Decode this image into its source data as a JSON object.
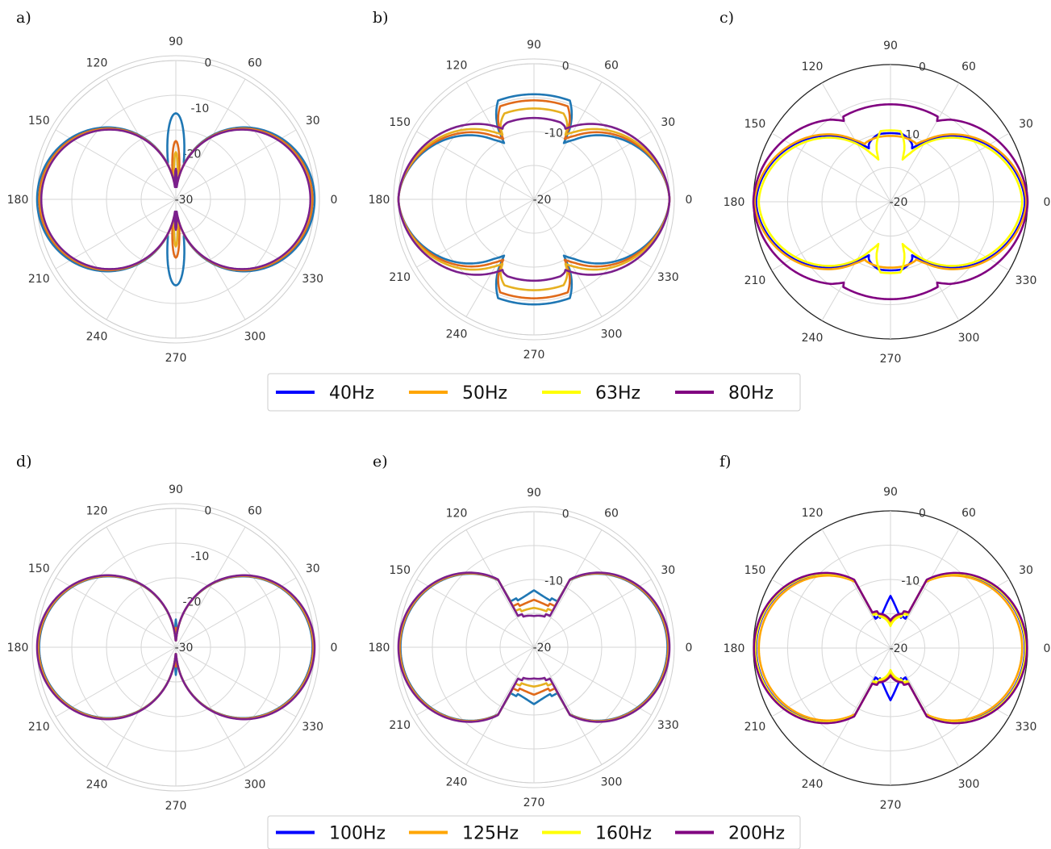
{
  "chart_data": [
    {
      "panel": "a)",
      "type": "polar",
      "style": "light",
      "angle_ticks": [
        "0",
        "30",
        "60",
        "90",
        "120",
        "150",
        "180",
        "210",
        "240",
        "270",
        "300",
        "330"
      ],
      "r_ticks": [
        "0",
        "-10",
        "-20",
        "-30"
      ],
      "r_range": [
        -30,
        0
      ],
      "grid": true,
      "series": [
        {
          "color": "#1f77b4",
          "ref": "40Hz",
          "pattern": "dipole",
          "values": {
            "lobe": 1.0,
            "minor": 0.62,
            "minor_width": 0.18,
            "base": 0.0
          }
        },
        {
          "color": "#e06a1a",
          "ref": "50Hz",
          "pattern": "dipole",
          "values": {
            "lobe": 0.985,
            "minor": 0.42,
            "minor_width": 0.11,
            "base": 0.0
          }
        },
        {
          "color": "#e6b020",
          "ref": "63Hz",
          "pattern": "dipole",
          "values": {
            "lobe": 0.975,
            "minor": 0.34,
            "minor_width": 0.07,
            "base": 0.0
          }
        },
        {
          "color": "#7b1f8c",
          "ref": "80Hz",
          "pattern": "dipole",
          "values": {
            "lobe": 0.97,
            "minor": 0.22,
            "minor_width": 0.05,
            "base": 0.0
          }
        }
      ]
    },
    {
      "panel": "b)",
      "type": "polar",
      "style": "light",
      "angle_ticks": [
        "0",
        "30",
        "60",
        "90",
        "120",
        "150",
        "180",
        "210",
        "240",
        "270",
        "300",
        "330"
      ],
      "r_ticks": [
        "0",
        "-10",
        "-20"
      ],
      "r_range": [
        -20,
        0
      ],
      "grid": true,
      "series": [
        {
          "color": "#1f77b4",
          "ref": "40Hz",
          "pattern": "cross",
          "values": {
            "side": 1.0,
            "top": 0.775,
            "notch": 0.47,
            "notch_at": 62,
            "top_width": 24
          }
        },
        {
          "color": "#e06a1a",
          "ref": "50Hz",
          "pattern": "cross",
          "values": {
            "side": 1.0,
            "top": 0.73,
            "notch": 0.5,
            "notch_at": 63,
            "top_width": 24
          }
        },
        {
          "color": "#e6b020",
          "ref": "63Hz",
          "pattern": "cross",
          "values": {
            "side": 1.0,
            "top": 0.67,
            "notch": 0.53,
            "notch_at": 64,
            "top_width": 23
          }
        },
        {
          "color": "#7b1f8c",
          "ref": "80Hz",
          "pattern": "cross",
          "values": {
            "side": 1.0,
            "top": 0.6,
            "notch": 0.57,
            "notch_at": 66,
            "top_width": 23
          }
        }
      ]
    },
    {
      "panel": "c)",
      "type": "polar",
      "style": "dark",
      "angle_ticks": [
        "0",
        "30",
        "60",
        "90",
        "120",
        "150",
        "180",
        "210",
        "240",
        "270",
        "300",
        "330"
      ],
      "r_ticks": [
        "0",
        "-10",
        "-20"
      ],
      "r_range": [
        -20,
        0
      ],
      "grid": true,
      "series": [
        {
          "color": "#0000ff",
          "ref": "40Hz",
          "pattern": "cross",
          "values": {
            "side": 0.98,
            "top": 0.5,
            "notch": 0.42,
            "notch_at": 68,
            "top_width": 14
          }
        },
        {
          "color": "#ffa500",
          "ref": "50Hz",
          "pattern": "cross",
          "values": {
            "side": 0.99,
            "top": 0.48,
            "notch": 0.46,
            "notch_at": 66,
            "top_width": 15
          }
        },
        {
          "color": "#ffff00",
          "ref": "63Hz",
          "pattern": "cross",
          "values": {
            "side": 0.96,
            "top": 0.52,
            "notch": 0.32,
            "notch_at": 74,
            "top_width": 12
          }
        },
        {
          "color": "#800080",
          "ref": "80Hz",
          "pattern": "cross",
          "values": {
            "side": 1.0,
            "top": 0.71,
            "notch": 0.68,
            "notch_at": 60,
            "top_width": 40
          }
        }
      ]
    },
    {
      "panel": "d)",
      "type": "polar",
      "style": "light",
      "angle_ticks": [
        "0",
        "30",
        "60",
        "90",
        "120",
        "150",
        "180",
        "210",
        "240",
        "270",
        "300",
        "330"
      ],
      "r_ticks": [
        "0",
        "-10",
        "-20",
        "-30"
      ],
      "r_range": [
        -30,
        0
      ],
      "grid": true,
      "series": [
        {
          "color": "#1f77b4",
          "ref": "100Hz",
          "pattern": "dipole",
          "values": {
            "lobe": 0.985,
            "minor": 0.2,
            "minor_width": 0.035,
            "base": 0.0
          }
        },
        {
          "color": "#e06a1a",
          "ref": "125Hz",
          "pattern": "dipole",
          "values": {
            "lobe": 0.99,
            "minor": 0.14,
            "minor_width": 0.03,
            "base": 0.0
          }
        },
        {
          "color": "#e6b020",
          "ref": "160Hz",
          "pattern": "dipole",
          "values": {
            "lobe": 0.995,
            "minor": 0.1,
            "minor_width": 0.025,
            "base": 0.0
          }
        },
        {
          "color": "#7b1f8c",
          "ref": "200Hz",
          "pattern": "dipole",
          "values": {
            "lobe": 1.0,
            "minor": 0.08,
            "minor_width": 0.02,
            "base": 0.0
          }
        }
      ]
    },
    {
      "panel": "e)",
      "type": "polar",
      "style": "light",
      "angle_ticks": [
        "0",
        "30",
        "60",
        "90",
        "120",
        "150",
        "180",
        "210",
        "240",
        "270",
        "300",
        "330"
      ],
      "r_ticks": [
        "0",
        "-10",
        "-20"
      ],
      "r_range": [
        -20,
        0
      ],
      "grid": true,
      "series": [
        {
          "color": "#1f77b4",
          "ref": "100Hz",
          "pattern": "figure8",
          "values": {
            "side": 0.985,
            "center": 0.42,
            "dip": 0.36
          }
        },
        {
          "color": "#e06a1a",
          "ref": "125Hz",
          "pattern": "figure8",
          "values": {
            "side": 0.99,
            "center": 0.35,
            "dip": 0.32
          }
        },
        {
          "color": "#e6b020",
          "ref": "160Hz",
          "pattern": "figure8",
          "values": {
            "side": 0.995,
            "center": 0.29,
            "dip": 0.28
          }
        },
        {
          "color": "#7b1f8c",
          "ref": "200Hz",
          "pattern": "figure8",
          "values": {
            "side": 1.0,
            "center": 0.23,
            "dip": 0.24
          }
        }
      ]
    },
    {
      "panel": "f)",
      "type": "polar",
      "style": "dark",
      "angle_ticks": [
        "0",
        "30",
        "60",
        "90",
        "120",
        "150",
        "180",
        "210",
        "240",
        "270",
        "300",
        "330"
      ],
      "r_ticks": [
        "0",
        "-10",
        "-20"
      ],
      "r_range": [
        -20,
        0
      ],
      "grid": true,
      "series": [
        {
          "color": "#0000ff",
          "ref": "100Hz",
          "pattern": "figure8",
          "values": {
            "side": 0.98,
            "center": 0.38,
            "dip": 0.22
          }
        },
        {
          "color": "#ffa500",
          "ref": "125Hz",
          "pattern": "figure8",
          "values": {
            "side": 0.96,
            "center": 0.18,
            "dip": 0.26
          }
        },
        {
          "color": "#ffff00",
          "ref": "160Hz",
          "pattern": "figure8",
          "values": {
            "side": 0.985,
            "center": 0.16,
            "dip": 0.25
          }
        },
        {
          "color": "#800080",
          "ref": "200Hz",
          "pattern": "figure8",
          "values": {
            "side": 0.995,
            "center": 0.2,
            "dip": 0.27
          }
        }
      ]
    }
  ],
  "legends": [
    {
      "entries": [
        {
          "label": "40Hz",
          "color": "#0000ff"
        },
        {
          "label": "50Hz",
          "color": "#ffa500"
        },
        {
          "label": "63Hz",
          "color": "#ffff00"
        },
        {
          "label": "80Hz",
          "color": "#800080"
        }
      ]
    },
    {
      "entries": [
        {
          "label": "100Hz",
          "color": "#0000ff"
        },
        {
          "label": "125Hz",
          "color": "#ffa500"
        },
        {
          "label": "160Hz",
          "color": "#ffff00"
        },
        {
          "label": "200Hz",
          "color": "#800080"
        }
      ]
    }
  ]
}
